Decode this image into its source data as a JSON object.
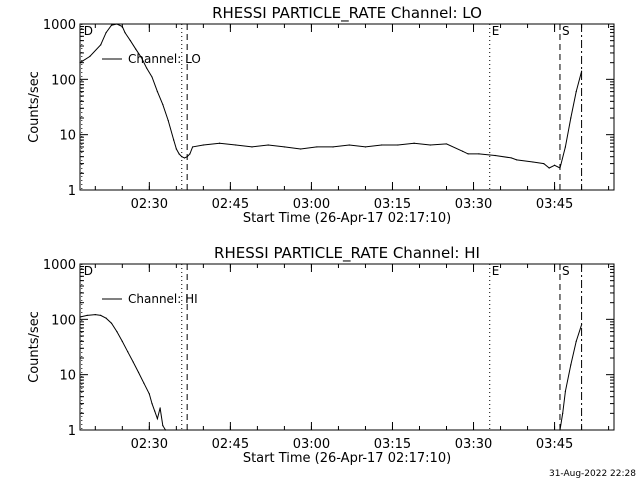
{
  "footer_timestamp": "31-Aug-2022 22:28",
  "chart_data": [
    {
      "type": "line",
      "title": "RHESSI PARTICLE_RATE Channel: LO",
      "xlabel": "Start Time (26-Apr-17 02:17:10)",
      "ylabel": "Counts/sec",
      "yscale": "log",
      "ylim": [
        1,
        1000
      ],
      "xlim": [
        "02:17:10",
        "03:56:00"
      ],
      "x_ticks": [
        "02:30",
        "02:45",
        "03:00",
        "03:15",
        "03:30",
        "03:45"
      ],
      "y_ticks": [
        "1",
        "10",
        "100",
        "1000"
      ],
      "legend": "Channel: LO",
      "legend_position": "top-left",
      "markers": [
        {
          "label": "D",
          "time": "02:17:30",
          "style": "dotted"
        },
        {
          "label": "",
          "time": "02:36:00",
          "style": "dotted"
        },
        {
          "label": "",
          "time": "02:37:00",
          "style": "dashed"
        },
        {
          "label": "E",
          "time": "03:33:00",
          "style": "dotted"
        },
        {
          "label": "S",
          "time": "03:46:00",
          "style": "dashed"
        },
        {
          "label": "",
          "time": "03:50:00",
          "style": "dashdot"
        }
      ],
      "series": [
        {
          "x": [
            "02:17:10",
            "02:19:00",
            "02:21:00",
            "02:22:00",
            "02:23:00",
            "02:24:00",
            "02:25:00",
            "02:25:30",
            "02:26:30",
            "02:27:30",
            "02:28:30",
            "02:29:30",
            "02:30:30",
            "02:31:30",
            "02:32:30",
            "02:33:30",
            "02:34:30",
            "02:35:00",
            "02:35:30",
            "02:36:00",
            "02:36:30",
            "02:37:00",
            "02:37:30",
            "02:38:00",
            "02:40:00",
            "02:43:00",
            "02:46:00",
            "02:49:00",
            "02:52:00",
            "02:55:00",
            "02:58:00",
            "03:01:00",
            "03:04:00",
            "03:07:00",
            "03:10:00",
            "03:13:00",
            "03:16:00",
            "03:19:00",
            "03:22:00",
            "03:25:00",
            "03:28:00",
            "03:29:00",
            "03:31:00",
            "03:34:00",
            "03:37:00",
            "03:38:00",
            "03:41:00",
            "03:43:00",
            "03:44:00",
            "03:45:00",
            "03:46:00",
            "03:47:00",
            "03:48:00",
            "03:49:00",
            "03:50:00"
          ],
          "values": [
            200,
            260,
            420,
            700,
            950,
            1000,
            900,
            700,
            500,
            350,
            250,
            160,
            110,
            60,
            35,
            18,
            8,
            5.5,
            4.5,
            4.0,
            3.8,
            4.0,
            4.5,
            6.0,
            6.5,
            7.0,
            6.5,
            6.0,
            6.5,
            6.0,
            5.5,
            6.0,
            6.0,
            6.5,
            6.0,
            6.5,
            6.5,
            7.0,
            6.5,
            6.8,
            5.0,
            4.5,
            4.5,
            4.2,
            3.8,
            3.5,
            3.2,
            3.0,
            2.5,
            2.8,
            2.5,
            6,
            20,
            60,
            140
          ]
        }
      ]
    },
    {
      "type": "line",
      "title": "RHESSI PARTICLE_RATE Channel: HI",
      "xlabel": "Start Time (26-Apr-17 02:17:10)",
      "ylabel": "Counts/sec",
      "yscale": "log",
      "ylim": [
        1,
        1000
      ],
      "xlim": [
        "02:17:10",
        "03:56:00"
      ],
      "x_ticks": [
        "02:30",
        "02:45",
        "03:00",
        "03:15",
        "03:30",
        "03:45"
      ],
      "y_ticks": [
        "1",
        "10",
        "100",
        "1000"
      ],
      "legend": "Channel: HI",
      "legend_position": "top-left",
      "markers": [
        {
          "label": "D",
          "time": "02:17:30",
          "style": "dotted"
        },
        {
          "label": "",
          "time": "02:36:00",
          "style": "dotted"
        },
        {
          "label": "",
          "time": "02:37:00",
          "style": "dashed"
        },
        {
          "label": "E",
          "time": "03:33:00",
          "style": "dotted"
        },
        {
          "label": "S",
          "time": "03:46:00",
          "style": "dashed"
        },
        {
          "label": "",
          "time": "03:50:00",
          "style": "dashdot"
        }
      ],
      "series": [
        {
          "x": [
            "02:17:10",
            "02:18:30",
            "02:20:00",
            "02:21:00",
            "02:22:00",
            "02:23:00",
            "02:24:00",
            "02:25:00",
            "02:26:00",
            "02:27:00",
            "02:28:00",
            "02:29:00",
            "02:30:00",
            "02:30:30",
            "02:31:00",
            "02:31:30",
            "02:32:00",
            "02:32:30",
            "02:33:00"
          ],
          "values": [
            110,
            118,
            122,
            118,
            105,
            85,
            60,
            40,
            26,
            17,
            11,
            7,
            4.5,
            3,
            2.2,
            1.6,
            2.5,
            1.2,
            1.0
          ]
        },
        {
          "x": [
            "03:46:00",
            "03:46:30",
            "03:47:00",
            "03:48:00",
            "03:49:00",
            "03:50:00"
          ],
          "values": [
            1.0,
            2.0,
            5.0,
            15,
            40,
            80
          ]
        }
      ]
    }
  ]
}
